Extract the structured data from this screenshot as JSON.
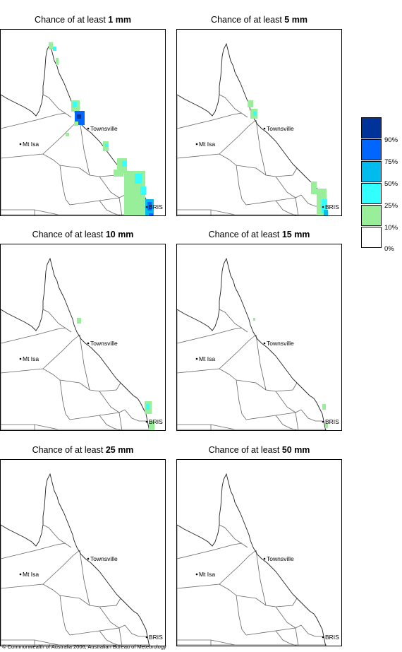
{
  "panels": [
    {
      "prefix": "Chance of at least ",
      "amount": "1 mm"
    },
    {
      "prefix": "Chance of at least ",
      "amount": "5 mm"
    },
    {
      "prefix": "Chance of at least ",
      "amount": "10 mm"
    },
    {
      "prefix": "Chance of at least ",
      "amount": "15 mm"
    },
    {
      "prefix": "Chance of at least ",
      "amount": "25 mm"
    },
    {
      "prefix": "Chance of at least ",
      "amount": "50 mm"
    }
  ],
  "places": {
    "townsville": "Townsville",
    "mt_isa": "Mt Isa",
    "brisbane": "BRIS"
  },
  "legend": {
    "labels": [
      "90%",
      "75%",
      "50%",
      "25%",
      "10%",
      "0%"
    ],
    "colors": [
      "#003399",
      "#0066ff",
      "#00bbee",
      "#33ffff",
      "#99ee99",
      "#ffffff"
    ]
  },
  "colors": {
    "light_green": "#99ee99",
    "cyan": "#33ffff",
    "sky": "#00bbee",
    "blue": "#0066ff",
    "dark_blue": "#003399"
  },
  "copyright": "© Commonwealth of Australia 2006, Australian Bureau of Meteorology"
}
